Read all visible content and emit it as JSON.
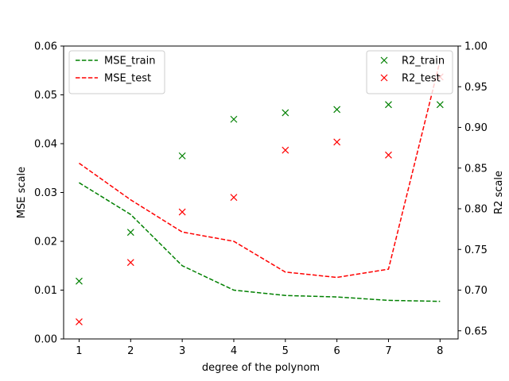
{
  "chart_data": {
    "type": "line",
    "x": [
      1,
      2,
      3,
      4,
      5,
      6,
      7,
      8
    ],
    "xlabel": "degree of the polynom",
    "xlim": [
      0.7,
      8.35
    ],
    "x_ticks": [
      "1",
      "2",
      "3",
      "4",
      "5",
      "6",
      "7",
      "8"
    ],
    "left_axis": {
      "label": "MSE scale",
      "ylim": [
        0.0,
        0.06
      ],
      "ticks": [
        "0.00",
        "0.01",
        "0.02",
        "0.03",
        "0.04",
        "0.05",
        "0.06"
      ]
    },
    "right_axis": {
      "label": "R2 scale",
      "ylim": [
        0.64,
        1.0
      ],
      "ticks": [
        "0.65",
        "0.70",
        "0.75",
        "0.80",
        "0.85",
        "0.90",
        "0.95",
        "1.00"
      ]
    },
    "series": [
      {
        "name": "MSE_train",
        "axis": "left",
        "style": "dashed-line",
        "color": "#008000",
        "values": [
          0.032,
          0.0255,
          0.015,
          0.01,
          0.0089,
          0.0086,
          0.0079,
          0.0077
        ]
      },
      {
        "name": "MSE_test",
        "axis": "left",
        "style": "dashed-line",
        "color": "#ff0000",
        "values": [
          0.036,
          0.0285,
          0.0219,
          0.02,
          0.0137,
          0.0126,
          0.0143,
          0.057
        ]
      },
      {
        "name": "R2_train",
        "axis": "right",
        "style": "x-marker",
        "color": "#008000",
        "values": [
          0.711,
          0.771,
          0.865,
          0.91,
          0.918,
          0.922,
          0.928,
          0.928
        ]
      },
      {
        "name": "R2_test",
        "axis": "right",
        "style": "x-marker",
        "color": "#ff0000",
        "values": [
          0.661,
          0.734,
          0.796,
          0.814,
          0.872,
          0.882,
          0.866,
          0.962
        ]
      }
    ],
    "legends": [
      {
        "placement": "top-left",
        "series": [
          "MSE_train",
          "MSE_test"
        ]
      },
      {
        "placement": "top-right",
        "series": [
          "R2_train",
          "R2_test"
        ]
      }
    ],
    "grid": false
  }
}
